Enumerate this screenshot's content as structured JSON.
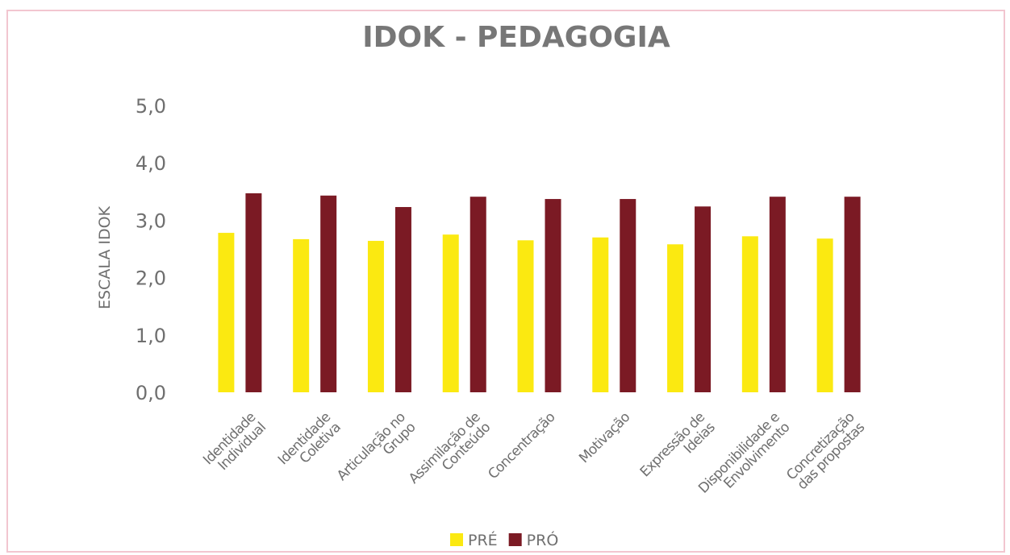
{
  "chart_data": {
    "type": "bar",
    "title": "IDOK - PEDAGOGIA",
    "y_label": "ESCALA IDOK",
    "categories": [
      "Identidade\nIndividual",
      "Identidade\nColetiva",
      "Articulação no\nGrupo",
      "Assimilação de\nConteúdo",
      "Concentração",
      "Motivação",
      "Expressão de\nIdeias",
      "Disponibilidade e\nEnvolvimento",
      "Concretização\ndas propostas"
    ],
    "series": [
      {
        "name": "PRÉ",
        "color": "#fbe911",
        "values": [
          2.78,
          2.67,
          2.64,
          2.75,
          2.65,
          2.7,
          2.58,
          2.72,
          2.68
        ]
      },
      {
        "name": "PRÓ",
        "color": "#7b1a24",
        "values": [
          3.47,
          3.43,
          3.23,
          3.41,
          3.37,
          3.37,
          3.24,
          3.41,
          3.41
        ]
      }
    ],
    "ylim": [
      0,
      5
    ],
    "yticks": [
      {
        "value": 0,
        "label": "0,0"
      },
      {
        "value": 1,
        "label": "1,0"
      },
      {
        "value": 2,
        "label": "2,0"
      },
      {
        "value": 3,
        "label": "3,0"
      },
      {
        "value": 4,
        "label": "4,0"
      },
      {
        "value": 5,
        "label": "5,0"
      }
    ],
    "grid": false,
    "legend": "bottom"
  }
}
